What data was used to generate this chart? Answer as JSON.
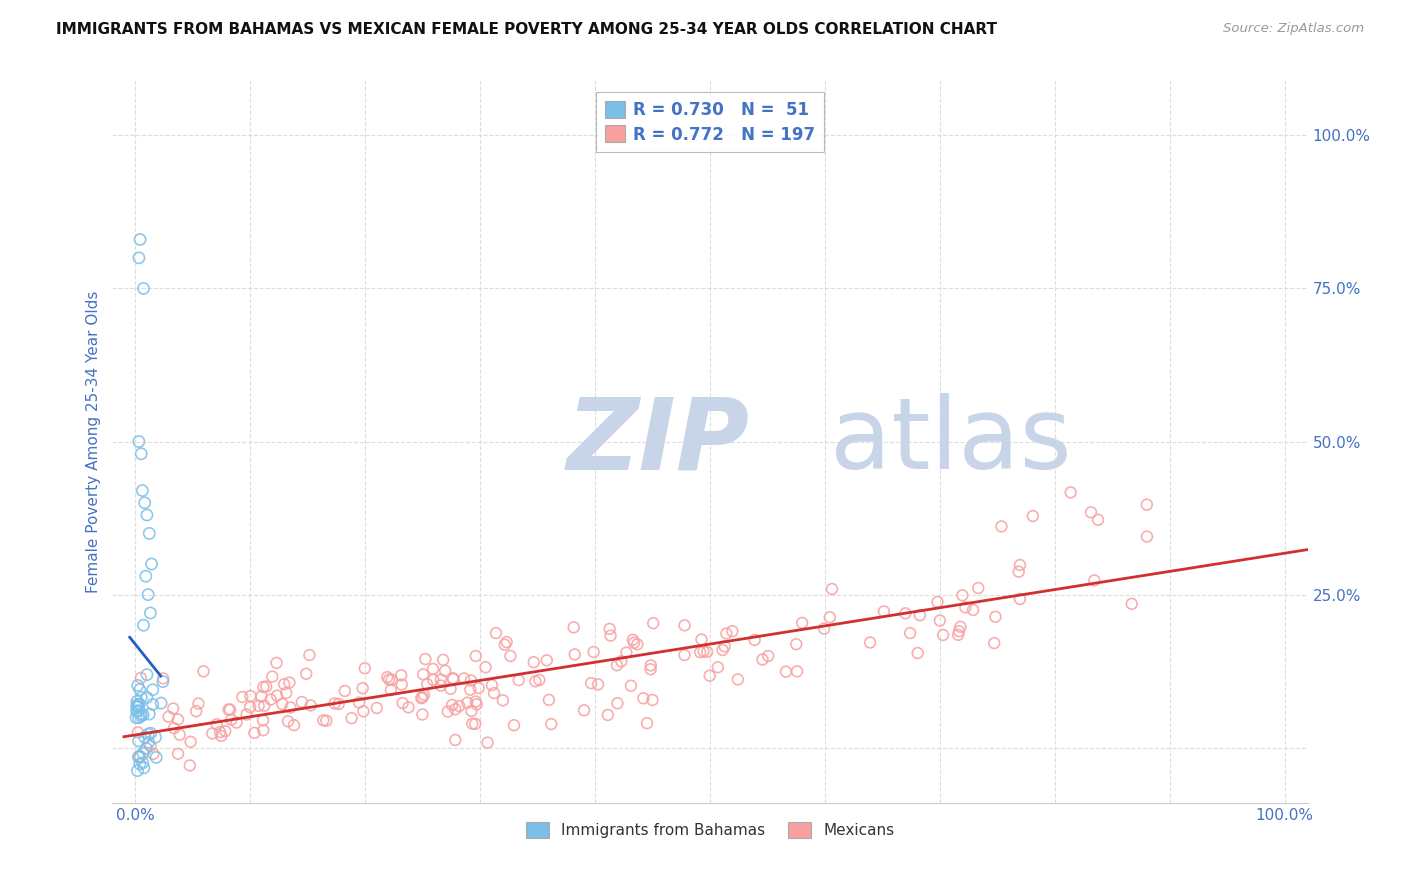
{
  "title": "IMMIGRANTS FROM BAHAMAS VS MEXICAN FEMALE POVERTY AMONG 25-34 YEAR OLDS CORRELATION CHART",
  "source": "Source: ZipAtlas.com",
  "ylabel": "Female Poverty Among 25-34 Year Olds",
  "r_bahamas": 0.73,
  "n_bahamas": 51,
  "r_mexicans": 0.772,
  "n_mexicans": 197,
  "color_bahamas": "#7BBFE8",
  "color_mexicans": "#F8A0A0",
  "color_line_bahamas": "#2060C0",
  "color_line_mexicans": "#D03030",
  "watermark_zip_color": "#C8D4E8",
  "watermark_atlas_color": "#C8D4E8",
  "background_color": "#FFFFFF",
  "grid_color": "#DDDDDD",
  "axis_label_color": "#4472C4",
  "tick_label_color": "#4472C4",
  "xlim": [
    -0.02,
    1.02
  ],
  "ylim": [
    -0.09,
    1.09
  ],
  "y_tick_labels_right": [
    "100.0%",
    "75.0%",
    "50.0%",
    "25.0%"
  ],
  "y_tick_positions_right": [
    1.0,
    0.75,
    0.5,
    0.25
  ]
}
